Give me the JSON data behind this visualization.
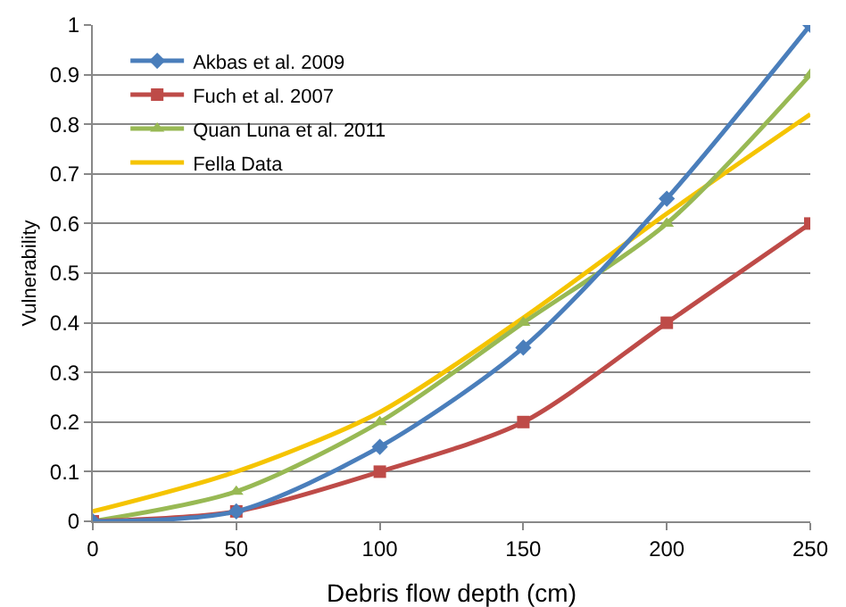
{
  "chart_data": {
    "type": "line",
    "xlabel": "Debris flow depth (cm)",
    "ylabel": "Vulnerability",
    "x": [
      0,
      50,
      100,
      150,
      200,
      250
    ],
    "series": [
      {
        "name": "Akbas et al. 2009",
        "color": "#4a7ebb",
        "marker": "diamond",
        "values": [
          0,
          0.02,
          0.15,
          0.35,
          0.65,
          1.0
        ]
      },
      {
        "name": "Fuch et al. 2007",
        "color": "#be4b48",
        "marker": "square",
        "values": [
          0,
          0.02,
          0.1,
          0.2,
          0.4,
          0.6
        ]
      },
      {
        "name": "Quan Luna et al. 2011",
        "color": "#98b954",
        "marker": "triangle",
        "values": [
          0,
          0.06,
          0.2,
          0.4,
          0.6,
          0.9
        ]
      },
      {
        "name": "Fella Data",
        "color": "#f5c400",
        "marker": "none",
        "values": [
          0.02,
          0.1,
          0.22,
          0.41,
          0.62,
          0.82
        ]
      }
    ],
    "xlim": [
      0,
      250
    ],
    "xticks": [
      0,
      50,
      100,
      150,
      200,
      250
    ],
    "ylim": [
      0,
      1
    ],
    "yticks": [
      0,
      0.1,
      0.2,
      0.3,
      0.4,
      0.5,
      0.6,
      0.7,
      0.8,
      0.9,
      1
    ],
    "grid": "y",
    "legend": "top left",
    "line_style": "solid"
  }
}
